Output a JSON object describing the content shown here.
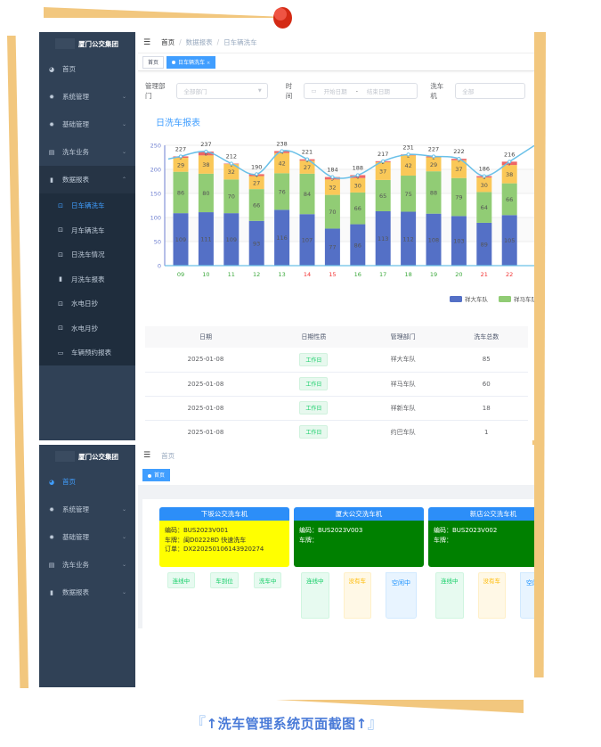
{
  "caption": {
    "open": "『",
    "text": "↑洗车管理系统页面截图↑",
    "close": "』"
  },
  "colors": {
    "sidebar": "#304156",
    "accent": "#409eff",
    "frame_stripe": "#f2c77e",
    "pin": "#e03a26"
  },
  "screen1": {
    "brand": "厦门公交集团",
    "menu": [
      {
        "label": "首页",
        "icon": "dashboard-icon"
      },
      {
        "label": "系统管理",
        "icon": "gear-icon",
        "arrow": "⌄"
      },
      {
        "label": "基础管理",
        "icon": "gear-icon",
        "arrow": "⌄"
      },
      {
        "label": "洗车业务",
        "icon": "list-icon",
        "arrow": "⌄"
      },
      {
        "label": "数据报表",
        "icon": "bar-chart-icon",
        "arrow": "⌃"
      }
    ],
    "submenu": [
      {
        "label": "日车辆洗车",
        "icon": "monitor-icon",
        "active": true
      },
      {
        "label": "月车辆洗车",
        "icon": "monitor-icon"
      },
      {
        "label": "日洗车情况",
        "icon": "monitor-icon"
      },
      {
        "label": "月洗车报表",
        "icon": "bar-chart-icon"
      },
      {
        "label": "水电日抄",
        "icon": "monitor-icon"
      },
      {
        "label": "水电月抄",
        "icon": "monitor-icon"
      },
      {
        "label": "车辆预约报表",
        "icon": "card-icon"
      }
    ],
    "breadcrumb": [
      "首页",
      "数据报表",
      "日车辆洗车"
    ],
    "tabs": [
      {
        "label": "首页"
      },
      {
        "label": "日车辆洗车",
        "close": "×"
      }
    ],
    "filters": {
      "dept_label": "管理部门",
      "dept_placeholder": "全部部门",
      "time_label": "时间",
      "start_placeholder": "开始日期",
      "range_sep": "-",
      "end_placeholder": "结束日期",
      "machine_label": "洗车机",
      "machine_placeholder": "全部"
    },
    "report_title": "日洗车报表",
    "table": {
      "headers": [
        "日期",
        "日期性质",
        "管理部门",
        "洗车总数"
      ],
      "rows": [
        [
          "2025-01-08",
          "工作日",
          "祥大车队",
          "85"
        ],
        [
          "2025-01-08",
          "工作日",
          "祥马车队",
          "60"
        ],
        [
          "2025-01-08",
          "工作日",
          "祥新车队",
          "18"
        ],
        [
          "2025-01-08",
          "工作日",
          "约巴车队",
          "1"
        ]
      ]
    }
  },
  "chart_data": {
    "type": "bar",
    "stacked": true,
    "title": "",
    "categories": [
      "09",
      "10",
      "11",
      "12",
      "13",
      "14",
      "15",
      "16",
      "17",
      "18",
      "19",
      "20",
      "21",
      "22"
    ],
    "weekend_categories": [
      "14",
      "15",
      "21",
      "22"
    ],
    "yticks": [
      0,
      50,
      100,
      150,
      200,
      250
    ],
    "ylim": [
      0,
      250
    ],
    "grid": true,
    "legend_position": "bottom-right",
    "series": [
      {
        "name": "祥大车队",
        "color": "#5470c6",
        "values": [
          109,
          111,
          109,
          93,
          116,
          107,
          77,
          86,
          113,
          112,
          108,
          103,
          89,
          105
        ]
      },
      {
        "name": "祥马车队",
        "color": "#91cc75",
        "values": [
          86,
          80,
          70,
          66,
          76,
          84,
          70,
          66,
          65,
          75,
          88,
          79,
          64,
          66
        ]
      },
      {
        "color": "#fac858",
        "values": [
          29,
          38,
          32,
          27,
          42,
          27,
          32,
          30,
          37,
          42,
          29,
          37,
          30,
          38
        ]
      },
      {
        "color": "#ee6666",
        "values": [
          3,
          8,
          1,
          4,
          4,
          3,
          5,
          6,
          2,
          2,
          2,
          3,
          3,
          7
        ]
      }
    ],
    "totals": {
      "type": "line",
      "color": "#6ac0e8",
      "values": [
        227,
        237,
        212,
        190,
        238,
        221,
        184,
        188,
        217,
        231,
        227,
        222,
        186,
        216
      ]
    }
  },
  "screen2": {
    "brand": "厦门公交集团",
    "menu": [
      {
        "label": "首页",
        "icon": "dashboard-icon",
        "active": true
      },
      {
        "label": "系统管理",
        "icon": "gear-icon",
        "arrow": "⌄"
      },
      {
        "label": "基础管理",
        "icon": "gear-icon",
        "arrow": "⌄"
      },
      {
        "label": "洗车业务",
        "icon": "list-icon",
        "arrow": "⌄"
      },
      {
        "label": "数据报表",
        "icon": "bar-chart-icon",
        "arrow": "⌄"
      }
    ],
    "breadcrumb": [
      "首页"
    ],
    "tabs": [
      {
        "label": "首页"
      }
    ],
    "machines": [
      {
        "name": "下坂公交洗车机",
        "bg": "#ffff00",
        "fg": "#333333",
        "lines": [
          "编码：BUS2023V001",
          "车牌：闽D02228D 快速洗车",
          "订单：DX2202501061439202​74"
        ],
        "status": [
          [
            "连线中",
            "g"
          ],
          [
            "车到位",
            "g"
          ],
          [
            "洗车中",
            "g"
          ]
        ]
      },
      {
        "name": "厦大公交洗车机",
        "bg": "#008000",
        "fg": "#ffffff",
        "lines": [
          "编码：BUS2023V003",
          "车牌：",
          ""
        ],
        "status": [
          [
            "连线中",
            "g"
          ],
          [
            "没有车",
            "o"
          ],
          [
            "空闲中",
            "b"
          ]
        ]
      },
      {
        "name": "新店公交洗车机",
        "bg": "#008000",
        "fg": "#ffffff",
        "lines": [
          "编码：BUS2023V002",
          "车牌：",
          ""
        ],
        "status": [
          [
            "连线中",
            "g"
          ],
          [
            "没有车",
            "o"
          ],
          [
            "空闲中",
            "b"
          ]
        ]
      }
    ]
  }
}
